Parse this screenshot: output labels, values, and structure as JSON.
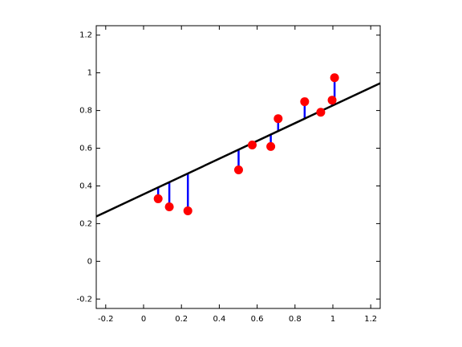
{
  "chart_data": {
    "type": "scatter",
    "x": [
      0.077,
      0.136,
      0.234,
      0.502,
      0.574,
      0.672,
      0.711,
      0.851,
      0.936,
      0.996,
      1.009
    ],
    "series": [
      {
        "type": "scatter",
        "color": "#ff0000",
        "residual_color": "#0000ff",
        "values": [
          0.332,
          0.289,
          0.268,
          0.485,
          0.617,
          0.609,
          0.757,
          0.847,
          0.791,
          0.855,
          0.974
        ]
      },
      {
        "type": "line",
        "color": "#000000",
        "x": [
          -0.25,
          1.25
        ],
        "values": [
          0.238,
          0.945
        ]
      }
    ],
    "xlim": [
      -0.25,
      1.25
    ],
    "ylim": [
      -0.25,
      1.25
    ],
    "xticks": [
      -0.2,
      0,
      0.2,
      0.4,
      0.6,
      0.8,
      1,
      1.2
    ],
    "yticks": [
      -0.2,
      0,
      0.2,
      0.4,
      0.6,
      0.8,
      1,
      1.2
    ],
    "grid": false
  }
}
